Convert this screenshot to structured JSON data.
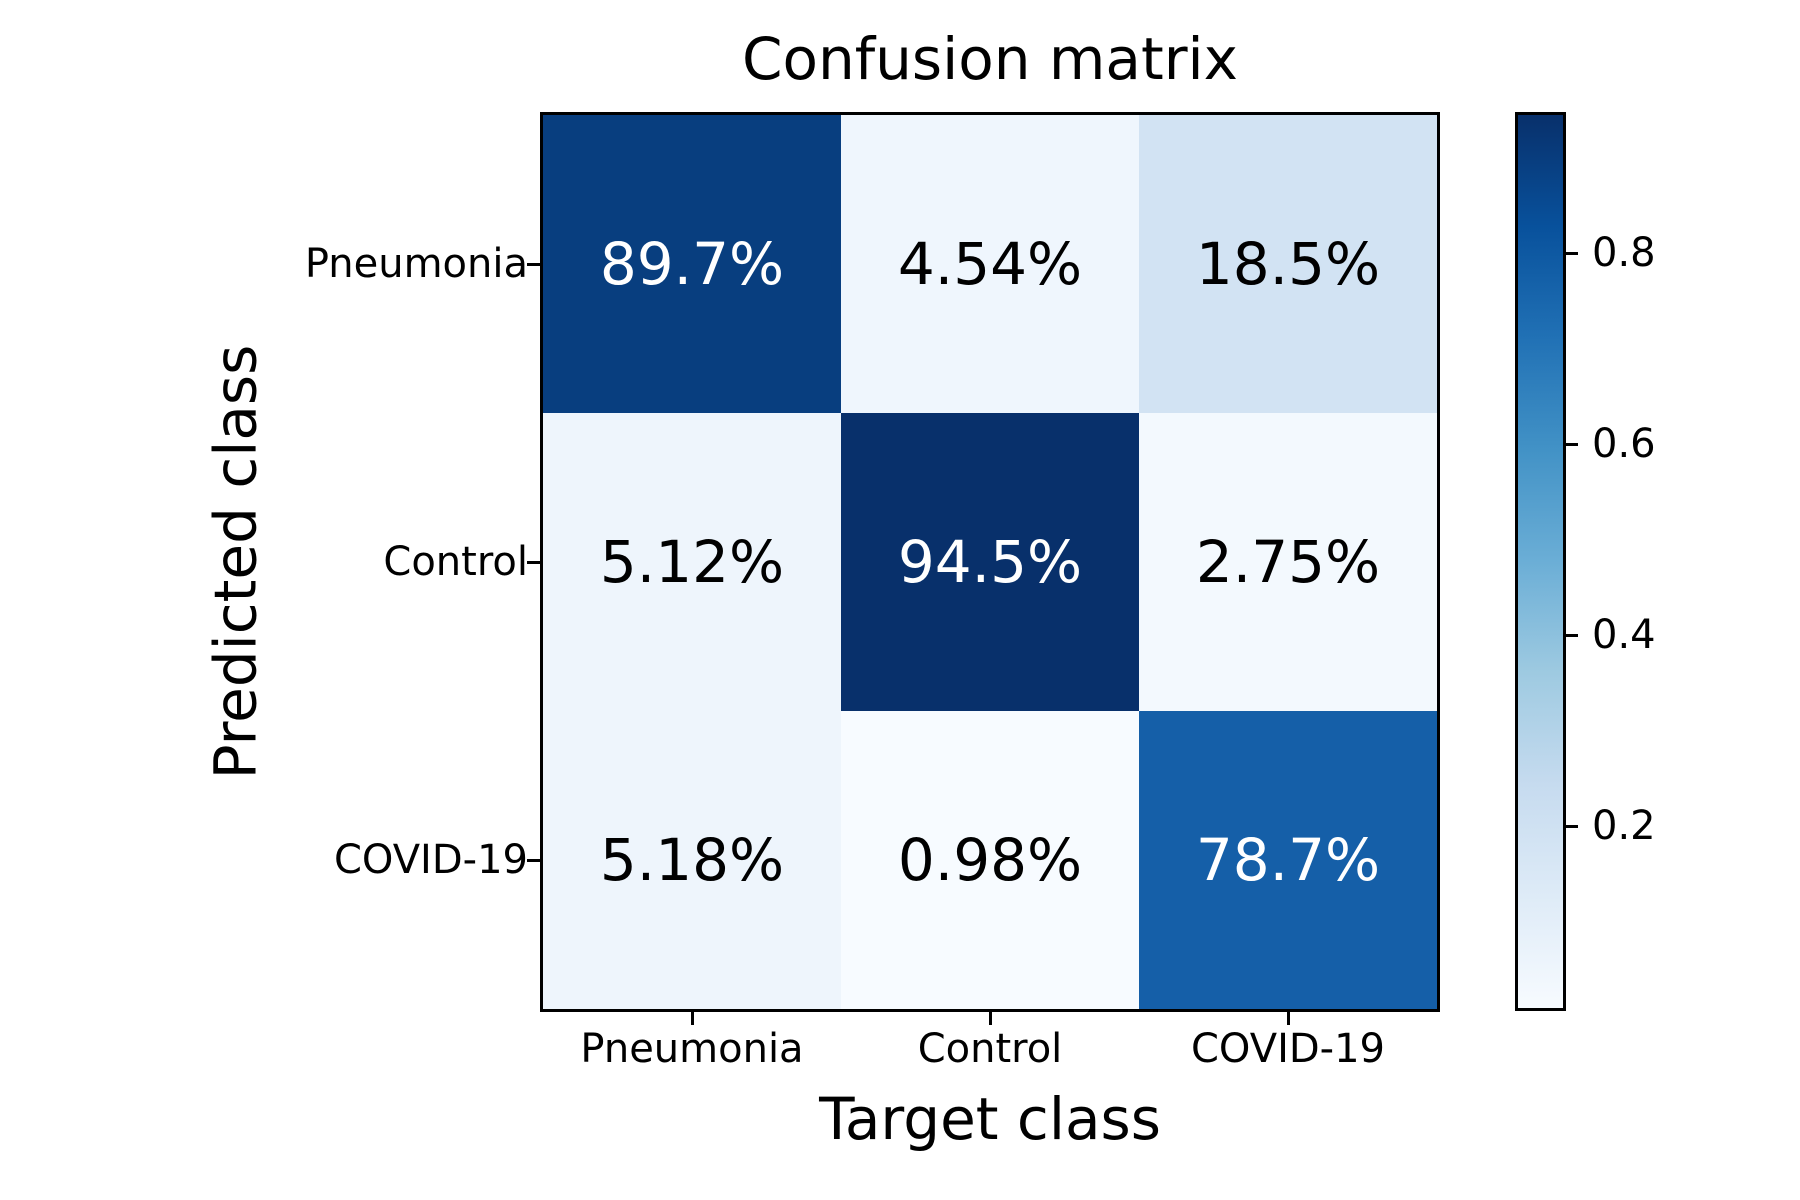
{
  "figure": {
    "background": "#ffffff",
    "axis_color": "#000000"
  },
  "chart_data": {
    "type": "heatmap",
    "title": "Confusion matrix",
    "xlabel": "Target class",
    "ylabel": "Predicted class",
    "x_categories": [
      "Pneumonia",
      "Control",
      "COVID-19"
    ],
    "y_categories": [
      "Pneumonia",
      "Control",
      "COVID-19"
    ],
    "cell_labels": [
      [
        "89.7%",
        "4.54%",
        "18.5%"
      ],
      [
        "5.12%",
        "94.5%",
        "2.75%"
      ],
      [
        "5.18%",
        "0.98%",
        "78.7%"
      ]
    ],
    "values": [
      [
        0.897,
        0.0454,
        0.185
      ],
      [
        0.0512,
        0.945,
        0.0275
      ],
      [
        0.0518,
        0.0098,
        0.787
      ]
    ],
    "cell_colors": [
      [
        "#083E7F",
        "#EFF6FD",
        "#D2E3F3"
      ],
      [
        "#EEF5FC",
        "#08306B",
        "#F3F9FE"
      ],
      [
        "#EEF5FC",
        "#F7FBFF",
        "#155FA8"
      ]
    ],
    "cell_text_colors": [
      [
        "#ffffff",
        "#000000",
        "#000000"
      ],
      [
        "#000000",
        "#ffffff",
        "#000000"
      ],
      [
        "#000000",
        "#000000",
        "#ffffff"
      ]
    ],
    "colormap": "Blues",
    "colormap_stops": [
      "#f7fbff",
      "#deebf7",
      "#c6dbef",
      "#9ecae1",
      "#6baed6",
      "#4292c6",
      "#2171b5",
      "#08519c",
      "#08306b"
    ],
    "colorbar_ticks": [
      "0.2",
      "0.4",
      "0.6",
      "0.8"
    ],
    "colorbar_tick_values": [
      0.2,
      0.4,
      0.6,
      0.8
    ],
    "colorbar_range": [
      0.0098,
      0.945
    ],
    "grid": false,
    "legend_position": "colorbar-right"
  }
}
